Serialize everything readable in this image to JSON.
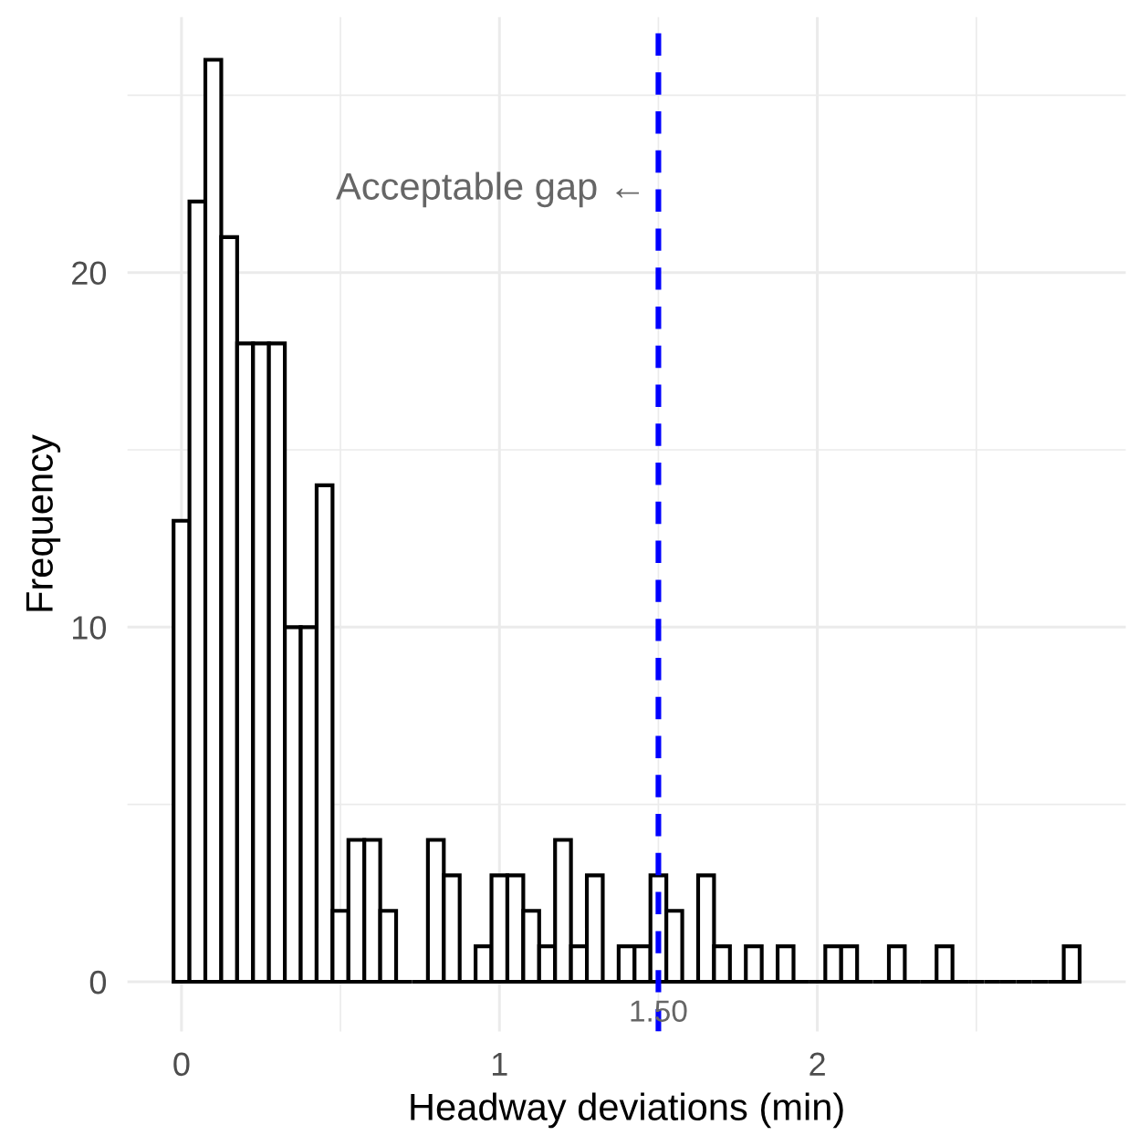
{
  "chart_data": {
    "type": "histogram",
    "xlabel": "Headway deviations (min)",
    "ylabel": "Frequency",
    "bins": [
      -0.025,
      0.025,
      0.075,
      0.125,
      0.175,
      0.225,
      0.275,
      0.325,
      0.375,
      0.425,
      0.475,
      0.525,
      0.575,
      0.625,
      0.675,
      0.725,
      0.775,
      0.825,
      0.875,
      0.925,
      0.975,
      1.025,
      1.075,
      1.125,
      1.175,
      1.225,
      1.275,
      1.325,
      1.375,
      1.425,
      1.475,
      1.525,
      1.575,
      1.625,
      1.675,
      1.725,
      1.775,
      1.825,
      1.875,
      1.925,
      1.975,
      2.025,
      2.075,
      2.125,
      2.175,
      2.225,
      2.275,
      2.325,
      2.375,
      2.425,
      2.475,
      2.525,
      2.575,
      2.625,
      2.675,
      2.725,
      2.775,
      2.825
    ],
    "values": [
      13,
      22,
      26,
      21,
      18,
      18,
      18,
      10,
      10,
      14,
      2,
      4,
      4,
      2,
      0,
      0,
      4,
      3,
      0,
      1,
      3,
      3,
      2,
      1,
      4,
      1,
      3,
      0,
      1,
      1,
      3,
      2,
      0,
      3,
      1,
      0,
      1,
      0,
      1,
      0,
      0,
      1,
      1,
      0,
      0,
      1,
      0,
      0,
      1,
      0,
      0,
      0,
      0,
      0,
      0,
      0,
      1
    ],
    "color": "#000000",
    "xlim": [
      -0.17,
      2.97
    ],
    "ylim": [
      -1.4,
      27.2
    ],
    "xticks": [
      0,
      1,
      2
    ],
    "yticks": [
      0,
      10,
      20
    ],
    "grid": true,
    "ref_lines": [
      {
        "axis": "x",
        "value": 1.5,
        "label": "1.50",
        "color": "#0000ff",
        "line_style": "dashed"
      }
    ],
    "annotations": [
      "Acceptable gap ←"
    ]
  }
}
